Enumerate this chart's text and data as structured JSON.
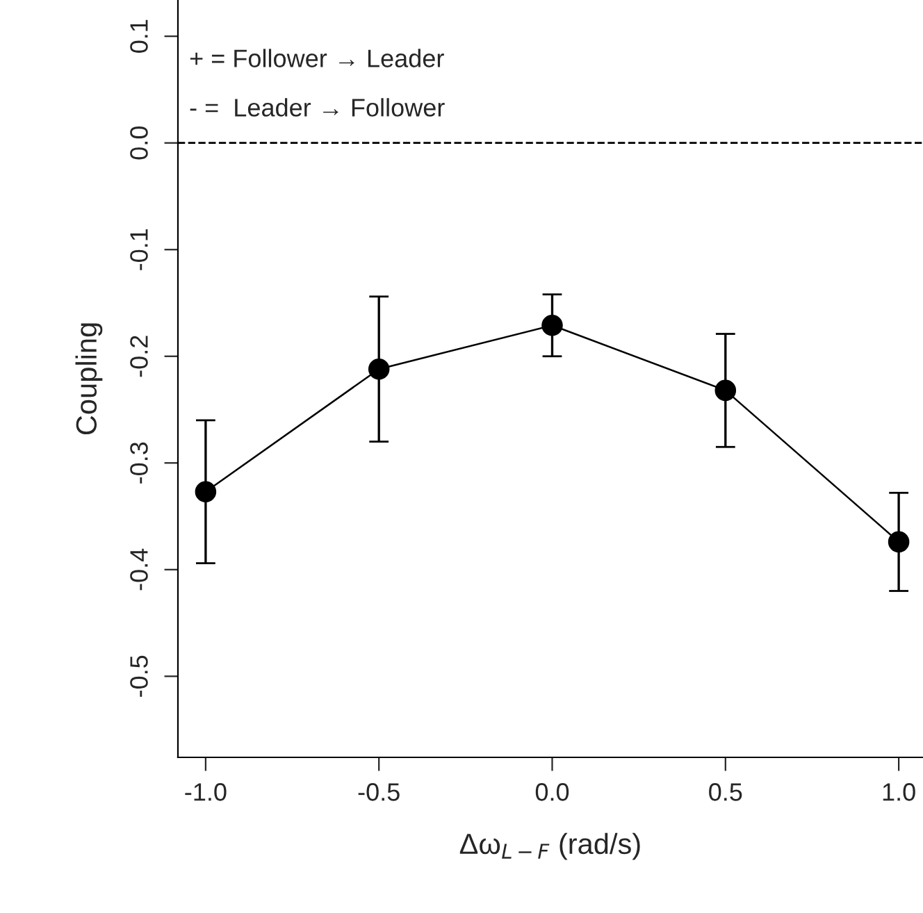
{
  "chart_data": {
    "type": "line",
    "xlabel": "Δω$_{L−F}$ (rad/s)",
    "ylabel": "Coupling",
    "x": [
      -1.0,
      -0.5,
      0.0,
      0.5,
      1.0
    ],
    "series": [
      {
        "color": "#000000",
        "values": [
          -0.327,
          -0.212,
          -0.171,
          -0.232,
          -0.374
        ],
        "errors": [
          0.067,
          0.068,
          0.029,
          0.053,
          0.046
        ]
      }
    ],
    "marker": "circle",
    "line_style": "solid",
    "xlim": [
      -1.08,
      1.07
    ],
    "ylim": [
      -0.576,
      0.134
    ],
    "xticks": [
      {
        "value": -1.0,
        "label": "-1.0"
      },
      {
        "value": -0.5,
        "label": "-0.5"
      },
      {
        "value": 0.0,
        "label": "0.0"
      },
      {
        "value": 0.5,
        "label": "0.5"
      },
      {
        "value": 1.0,
        "label": "1.0"
      }
    ],
    "yticks": [
      {
        "value": -0.5,
        "label": "-0.5"
      },
      {
        "value": -0.4,
        "label": "-0.4"
      },
      {
        "value": -0.3,
        "label": "-0.3"
      },
      {
        "value": -0.2,
        "label": "-0.2"
      },
      {
        "value": -0.1,
        "label": "-0.1"
      },
      {
        "value": 0.0,
        "label": "0.0"
      },
      {
        "value": 0.1,
        "label": "0.1"
      }
    ],
    "ref_lines": [
      {
        "axis": "y",
        "value": 0.0,
        "line_style": "dashed",
        "color": "#000000"
      }
    ],
    "annotations": [
      "+ = Follower → Leader",
      "- =  Leader → Follower"
    ],
    "grid": false,
    "legend": false
  }
}
